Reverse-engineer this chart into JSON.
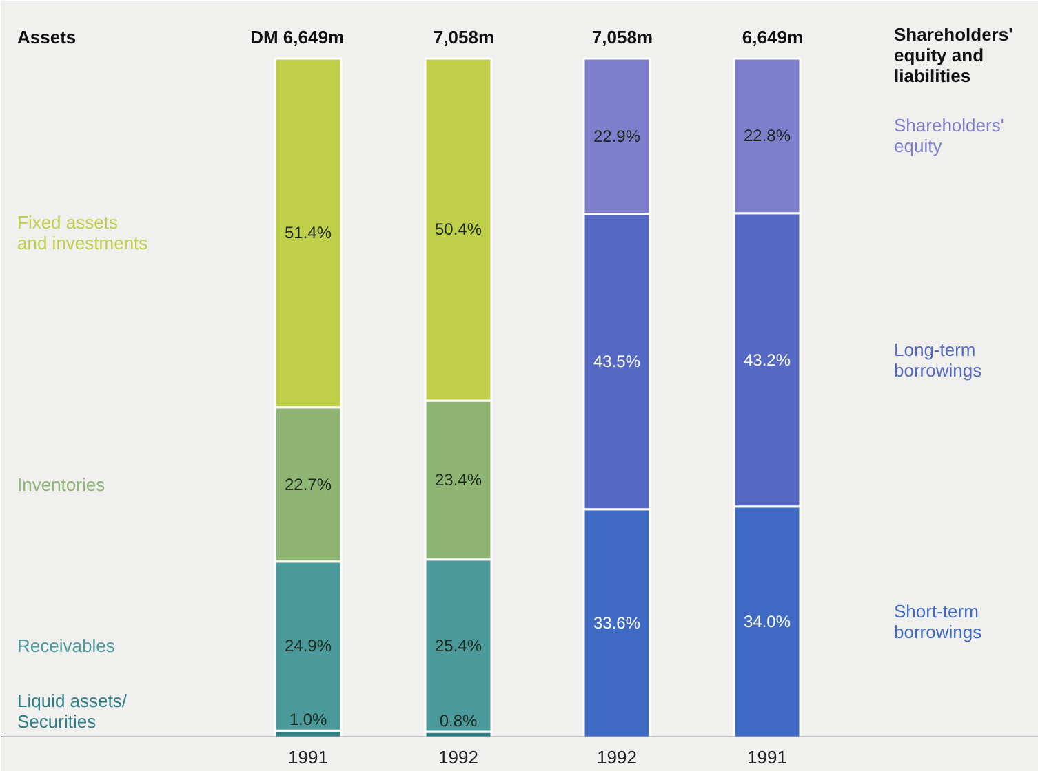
{
  "chart_data": {
    "type": "bar",
    "stacked": true,
    "tick_labels": "x",
    "categories": [
      "1991",
      "1992",
      "1992",
      "1991"
    ],
    "annotations": [
      "Assets",
      "Shareholders' equity and liabilities",
      "DM 6,649m",
      "7,058m",
      "7,058m",
      "6,649m"
    ],
    "series": [
      {
        "name": "Liquid assets/ Securities",
        "color": "#2f7f86",
        "values": [
          1.0,
          0.8,
          null,
          null
        ],
        "value_labels": [
          "1.0%",
          "0.8%",
          null,
          null
        ]
      },
      {
        "name": "Receivables",
        "color": "#4a9a9c",
        "values": [
          24.9,
          25.4,
          null,
          null
        ],
        "value_labels": [
          "24.9%",
          "25.4%",
          null,
          null
        ]
      },
      {
        "name": "Inventories",
        "color": "#8eb574",
        "values": [
          22.7,
          23.4,
          null,
          null
        ],
        "value_labels": [
          "22.7%",
          "23.4%",
          null,
          null
        ]
      },
      {
        "name": "Fixed assets and investments",
        "color": "#bfcf4a",
        "values": [
          51.4,
          50.4,
          null,
          null
        ],
        "value_labels": [
          "51.4%",
          "50.4%",
          null,
          null
        ]
      },
      {
        "name": "Short-term borrowings",
        "color": "#3f6ac4",
        "values": [
          null,
          null,
          33.6,
          34.0
        ],
        "value_labels": [
          null,
          null,
          "33.6%",
          "34.0%"
        ]
      },
      {
        "name": "Long-term borrowings",
        "color": "#5568c4",
        "values": [
          null,
          null,
          43.5,
          43.2
        ],
        "value_labels": [
          null,
          null,
          "43.5%",
          "43.2%"
        ]
      },
      {
        "name": "Shareholders' equity",
        "color": "#7d7fcc",
        "values": [
          null,
          null,
          22.9,
          22.8
        ],
        "value_labels": [
          null,
          null,
          "22.9%",
          "22.8%"
        ]
      }
    ]
  }
}
